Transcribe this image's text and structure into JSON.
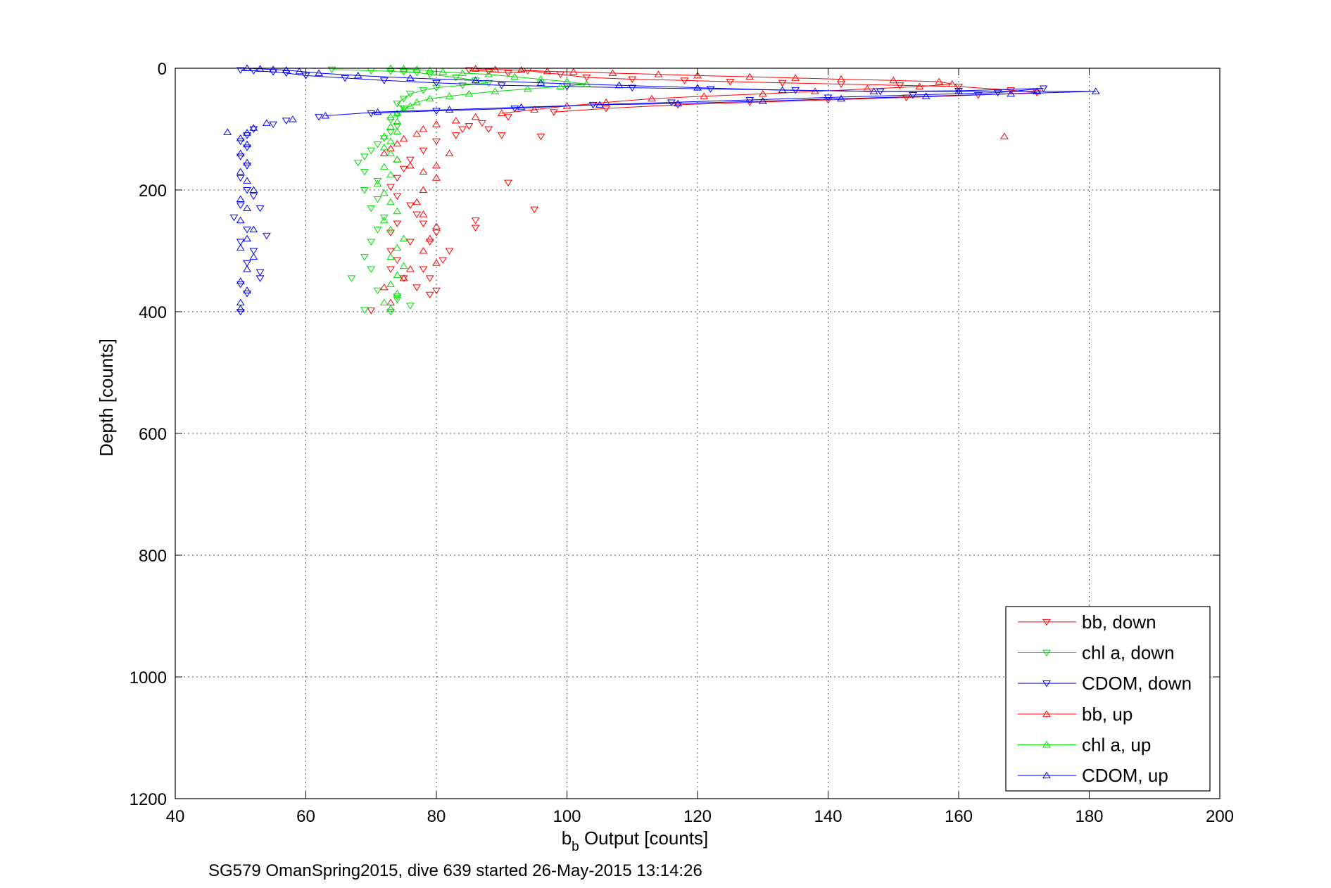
{
  "chart_data": {
    "type": "scatter",
    "xlabel_main": "b",
    "xlabel_sub": "b",
    "xlabel_rest": " Output [counts]",
    "ylabel": "Depth [counts]",
    "caption": "SG579 OmanSpring2015, dive 639 started 26-May-2015 13:14:26",
    "xlim": [
      40,
      200
    ],
    "ylim": [
      0,
      1200
    ],
    "y_reversed": true,
    "grid": true,
    "legend_position": "bottom-right",
    "xticks": [
      "40",
      "60",
      "80",
      "100",
      "120",
      "140",
      "160",
      "180",
      "200"
    ],
    "yticks": [
      "0",
      "200",
      "400",
      "600",
      "800",
      "1000",
      "1200"
    ],
    "series": [
      {
        "name": "bb, down",
        "color": "#ff0000",
        "marker": "triangle-down",
        "points": [
          [
            85,
            3
          ],
          [
            88,
            5
          ],
          [
            91,
            8
          ],
          [
            94,
            4
          ],
          [
            99,
            10
          ],
          [
            103,
            15
          ],
          [
            110,
            18
          ],
          [
            118,
            20
          ],
          [
            125,
            22
          ],
          [
            133,
            24
          ],
          [
            142,
            26
          ],
          [
            151,
            28
          ],
          [
            160,
            30
          ],
          [
            168,
            36
          ],
          [
            172,
            40
          ],
          [
            163,
            44
          ],
          [
            152,
            48
          ],
          [
            140,
            52
          ],
          [
            128,
            56
          ],
          [
            117,
            60
          ],
          [
            106,
            66
          ],
          [
            98,
            72
          ],
          [
            91,
            80
          ],
          [
            87,
            90
          ],
          [
            84,
            100
          ],
          [
            83,
            110
          ],
          [
            80,
            120
          ],
          [
            78,
            135
          ],
          [
            76,
            150
          ],
          [
            75,
            165
          ],
          [
            74,
            180
          ],
          [
            73,
            195
          ],
          [
            74,
            210
          ],
          [
            76,
            225
          ],
          [
            77,
            240
          ],
          [
            74,
            255
          ],
          [
            73,
            270
          ],
          [
            76,
            285
          ],
          [
            73,
            300
          ],
          [
            74,
            315
          ],
          [
            73,
            330
          ],
          [
            75,
            345
          ],
          [
            77,
            360
          ],
          [
            79,
            372
          ],
          [
            80,
            365
          ],
          [
            79,
            345
          ],
          [
            78,
            330
          ],
          [
            81,
            315
          ],
          [
            82,
            300
          ],
          [
            79,
            285
          ],
          [
            80,
            270
          ],
          [
            78,
            255
          ],
          [
            86,
            250
          ],
          [
            86,
            262
          ],
          [
            91,
            188
          ],
          [
            95,
            232
          ],
          [
            96,
            112
          ],
          [
            85,
            95
          ],
          [
            88,
            100
          ],
          [
            90,
            110
          ],
          [
            70,
            398
          ]
        ]
      },
      {
        "name": "chl a, down",
        "color": "#00dd00",
        "marker": "triangle-down",
        "points": [
          [
            64,
            2
          ],
          [
            70,
            4
          ],
          [
            73,
            5
          ],
          [
            75,
            6
          ],
          [
            77,
            7
          ],
          [
            79,
            10
          ],
          [
            83,
            15
          ],
          [
            86,
            20
          ],
          [
            88,
            24
          ],
          [
            84,
            28
          ],
          [
            80,
            32
          ],
          [
            78,
            36
          ],
          [
            76,
            42
          ],
          [
            75,
            50
          ],
          [
            74,
            58
          ],
          [
            75,
            66
          ],
          [
            74,
            75
          ],
          [
            73,
            85
          ],
          [
            74,
            95
          ],
          [
            73,
            105
          ],
          [
            72,
            115
          ],
          [
            71,
            125
          ],
          [
            70,
            135
          ],
          [
            69,
            145
          ],
          [
            68,
            155
          ],
          [
            69,
            170
          ],
          [
            71,
            185
          ],
          [
            69,
            200
          ],
          [
            71,
            215
          ],
          [
            70,
            230
          ],
          [
            72,
            245
          ],
          [
            71,
            265
          ],
          [
            70,
            285
          ],
          [
            69,
            310
          ],
          [
            70,
            330
          ],
          [
            67,
            345
          ],
          [
            71,
            365
          ],
          [
            74,
            380
          ],
          [
            76,
            390
          ],
          [
            69,
            397
          ],
          [
            73,
            400
          ],
          [
            74,
            375
          ]
        ]
      },
      {
        "name": "CDOM, down",
        "color": "#0000ff",
        "marker": "triangle-down",
        "points": [
          [
            50,
            3
          ],
          [
            52,
            4
          ],
          [
            55,
            6
          ],
          [
            57,
            8
          ],
          [
            60,
            12
          ],
          [
            66,
            16
          ],
          [
            72,
            20
          ],
          [
            80,
            24
          ],
          [
            90,
            28
          ],
          [
            100,
            30
          ],
          [
            110,
            32
          ],
          [
            122,
            34
          ],
          [
            135,
            36
          ],
          [
            148,
            38
          ],
          [
            160,
            37
          ],
          [
            173,
            33
          ],
          [
            166,
            40
          ],
          [
            153,
            44
          ],
          [
            140,
            48
          ],
          [
            128,
            52
          ],
          [
            116,
            56
          ],
          [
            104,
            60
          ],
          [
            92,
            66
          ],
          [
            80,
            70
          ],
          [
            70,
            74
          ],
          [
            62,
            80
          ],
          [
            57,
            86
          ],
          [
            55,
            92
          ],
          [
            52,
            100
          ],
          [
            51,
            110
          ],
          [
            50,
            120
          ],
          [
            51,
            130
          ],
          [
            50,
            145
          ],
          [
            51,
            160
          ],
          [
            50,
            180
          ],
          [
            51,
            200
          ],
          [
            50,
            225
          ],
          [
            49,
            245
          ],
          [
            51,
            265
          ],
          [
            50,
            285
          ],
          [
            52,
            300
          ],
          [
            51,
            320
          ],
          [
            53,
            335
          ],
          [
            50,
            355
          ],
          [
            51,
            370
          ],
          [
            50,
            400
          ],
          [
            54,
            275
          ],
          [
            53,
            345
          ],
          [
            53,
            230
          ],
          [
            52,
            210
          ]
        ]
      },
      {
        "name": "bb, up",
        "color": "#ff0000",
        "marker": "triangle-up",
        "points": [
          [
            86,
            1
          ],
          [
            89,
            2
          ],
          [
            93,
            3
          ],
          [
            97,
            5
          ],
          [
            101,
            6
          ],
          [
            107,
            8
          ],
          [
            114,
            10
          ],
          [
            120,
            12
          ],
          [
            128,
            14
          ],
          [
            135,
            16
          ],
          [
            142,
            18
          ],
          [
            150,
            20
          ],
          [
            157,
            22
          ],
          [
            159,
            26
          ],
          [
            154,
            30
          ],
          [
            146,
            34
          ],
          [
            138,
            38
          ],
          [
            130,
            42
          ],
          [
            121,
            46
          ],
          [
            113,
            50
          ],
          [
            106,
            56
          ],
          [
            100,
            62
          ],
          [
            95,
            68
          ],
          [
            90,
            74
          ],
          [
            86,
            80
          ],
          [
            83,
            86
          ],
          [
            80,
            92
          ],
          [
            78,
            100
          ],
          [
            77,
            108
          ],
          [
            75,
            116
          ],
          [
            74,
            124
          ],
          [
            73,
            132
          ],
          [
            72,
            140
          ],
          [
            74,
            150
          ],
          [
            76,
            160
          ],
          [
            78,
            170
          ],
          [
            80,
            180
          ],
          [
            78,
            200
          ],
          [
            77,
            220
          ],
          [
            78,
            240
          ],
          [
            80,
            260
          ],
          [
            79,
            280
          ],
          [
            78,
            300
          ],
          [
            80,
            320
          ],
          [
            76,
            330
          ],
          [
            75,
            345
          ],
          [
            72,
            360
          ],
          [
            73,
            385
          ],
          [
            167,
            112
          ],
          [
            82,
            140
          ],
          [
            80,
            160
          ]
        ]
      },
      {
        "name": "chl a, up",
        "color": "#00dd00",
        "marker": "triangle-up",
        "points": [
          [
            73,
            0
          ],
          [
            75,
            1
          ],
          [
            77,
            2
          ],
          [
            79,
            4
          ],
          [
            81,
            6
          ],
          [
            84,
            8
          ],
          [
            88,
            10
          ],
          [
            92,
            14
          ],
          [
            96,
            18
          ],
          [
            100,
            22
          ],
          [
            103,
            26
          ],
          [
            99,
            30
          ],
          [
            94,
            34
          ],
          [
            89,
            38
          ],
          [
            85,
            42
          ],
          [
            82,
            46
          ],
          [
            79,
            50
          ],
          [
            77,
            56
          ],
          [
            76,
            62
          ],
          [
            75,
            68
          ],
          [
            74,
            74
          ],
          [
            73,
            80
          ],
          [
            74,
            88
          ],
          [
            73,
            96
          ],
          [
            74,
            104
          ],
          [
            72,
            112
          ],
          [
            73,
            120
          ],
          [
            72,
            130
          ],
          [
            73,
            140
          ],
          [
            74,
            150
          ],
          [
            72,
            162
          ],
          [
            73,
            175
          ],
          [
            71,
            190
          ],
          [
            72,
            205
          ],
          [
            73,
            220
          ],
          [
            74,
            235
          ],
          [
            72,
            250
          ],
          [
            73,
            265
          ],
          [
            75,
            280
          ],
          [
            74,
            295
          ],
          [
            73,
            310
          ],
          [
            75,
            325
          ],
          [
            74,
            340
          ],
          [
            73,
            355
          ],
          [
            74,
            370
          ],
          [
            72,
            385
          ],
          [
            73,
            395
          ]
        ]
      },
      {
        "name": "CDOM, up",
        "color": "#0000ff",
        "marker": "triangle-up",
        "points": [
          [
            51,
            0
          ],
          [
            53,
            1
          ],
          [
            55,
            2
          ],
          [
            57,
            3
          ],
          [
            59,
            5
          ],
          [
            62,
            8
          ],
          [
            68,
            12
          ],
          [
            76,
            16
          ],
          [
            86,
            20
          ],
          [
            96,
            24
          ],
          [
            108,
            28
          ],
          [
            120,
            32
          ],
          [
            133,
            36
          ],
          [
            147,
            38
          ],
          [
            160,
            38
          ],
          [
            172,
            38
          ],
          [
            181,
            38
          ],
          [
            168,
            42
          ],
          [
            155,
            46
          ],
          [
            142,
            50
          ],
          [
            130,
            54
          ],
          [
            117,
            58
          ],
          [
            105,
            60
          ],
          [
            93,
            64
          ],
          [
            82,
            68
          ],
          [
            71,
            72
          ],
          [
            63,
            78
          ],
          [
            58,
            84
          ],
          [
            54,
            90
          ],
          [
            52,
            98
          ],
          [
            51,
            106
          ],
          [
            48,
            105
          ],
          [
            50,
            115
          ],
          [
            51,
            125
          ],
          [
            50,
            140
          ],
          [
            51,
            155
          ],
          [
            50,
            170
          ],
          [
            51,
            185
          ],
          [
            52,
            200
          ],
          [
            50,
            215
          ],
          [
            51,
            230
          ],
          [
            50,
            250
          ],
          [
            52,
            265
          ],
          [
            51,
            280
          ],
          [
            50,
            295
          ],
          [
            52,
            310
          ],
          [
            51,
            330
          ],
          [
            50,
            350
          ],
          [
            51,
            365
          ],
          [
            50,
            385
          ],
          [
            50,
            395
          ]
        ]
      }
    ]
  }
}
